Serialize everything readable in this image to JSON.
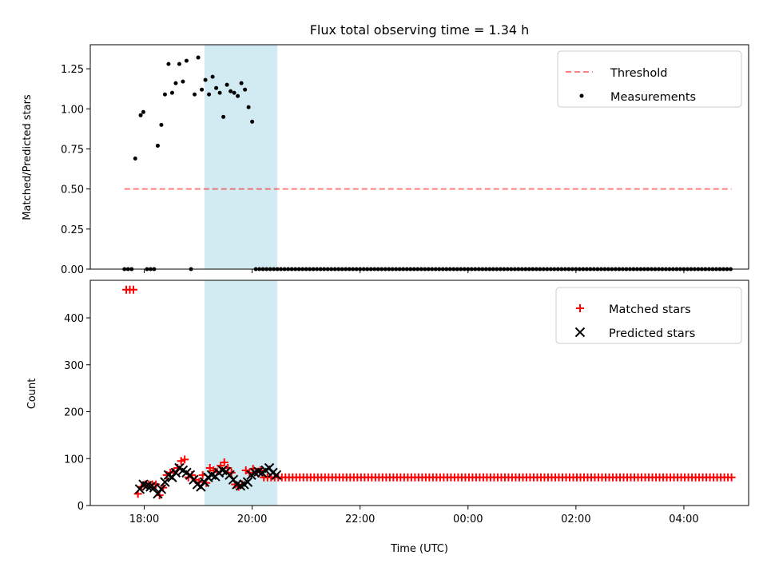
{
  "chart_data": [
    {
      "type": "scatter",
      "title": "Flux total observing time = 1.34 h",
      "xlabel": "",
      "ylabel": "Matched/Predicted stars",
      "x_range_hours": [
        17.0,
        5.2
      ],
      "ylim": [
        0,
        1.4
      ],
      "x_ticks": [
        18,
        20,
        22,
        0,
        2,
        4
      ],
      "y_ticks": [
        0.0,
        0.25,
        0.5,
        0.75,
        1.0,
        1.25
      ],
      "y_tick_labels": [
        "0.00",
        "0.25",
        "0.50",
        "0.75",
        "1.00",
        "1.25"
      ],
      "grid": false,
      "legend": "top-right",
      "shaded_interval": {
        "start": "19:07",
        "end": "20:28",
        "color": "#add8e6"
      },
      "series": [
        {
          "name": "Threshold",
          "kind": "line",
          "color": "#ff0000",
          "x": [
            "17:38",
            "04:53"
          ],
          "y": [
            0.5,
            0.5
          ]
        },
        {
          "name": "Measurements",
          "kind": "scatter",
          "color": "#000000",
          "x": [
            "17:38",
            "17:42",
            "17:46",
            "17:50",
            "17:56",
            "17:59",
            "18:03",
            "18:07",
            "18:11",
            "18:15",
            "18:19",
            "18:23",
            "18:27",
            "18:31",
            "18:35",
            "18:39",
            "18:43",
            "18:47",
            "18:52",
            "18:56",
            "19:00",
            "19:04",
            "19:08",
            "19:12",
            "19:16",
            "19:20",
            "19:24",
            "19:28",
            "19:32",
            "19:36",
            "19:40",
            "19:44",
            "19:48",
            "19:52",
            "19:56",
            "20:00",
            "20:04",
            "20:08",
            "20:12",
            "20:16",
            "20:20",
            "20:24",
            "20:28"
          ],
          "y": [
            0,
            0,
            0,
            0.69,
            0.96,
            0.98,
            0,
            0,
            0,
            0.77,
            0.9,
            1.09,
            1.28,
            1.1,
            1.16,
            1.28,
            1.17,
            1.3,
            0,
            1.09,
            1.32,
            1.12,
            1.18,
            1.09,
            1.2,
            1.13,
            1.1,
            0.95,
            1.15,
            1.11,
            1.1,
            1.08,
            1.16,
            1.12,
            1.01,
            0.92,
            0,
            0,
            0,
            0,
            0,
            0,
            0
          ],
          "zero_tail": {
            "start": "20:32",
            "end": "04:53",
            "step_minutes": 4,
            "value": 0
          }
        }
      ]
    },
    {
      "type": "scatter",
      "title": "",
      "xlabel": "Time (UTC)",
      "ylabel": "Count",
      "x_range_hours": [
        17.0,
        5.2
      ],
      "ylim": [
        0,
        480
      ],
      "x_ticks": [
        18,
        20,
        22,
        0,
        2,
        4
      ],
      "x_tick_labels": [
        "18:00",
        "20:00",
        "22:00",
        "00:00",
        "02:00",
        "04:00"
      ],
      "y_ticks": [
        0,
        100,
        200,
        300,
        400
      ],
      "y_tick_labels": [
        "0",
        "100",
        "200",
        "300",
        "400"
      ],
      "grid": false,
      "legend": "top-right",
      "shaded_interval": {
        "start": "19:07",
        "end": "20:28",
        "color": "#add8e6"
      },
      "series": [
        {
          "name": "Matched stars",
          "kind": "plus",
          "color": "#ff0000",
          "x": [
            "17:40",
            "17:44",
            "17:48",
            "17:53",
            "17:57",
            "18:01",
            "18:05",
            "18:09",
            "18:13",
            "18:17",
            "18:21",
            "18:25",
            "18:29",
            "18:33",
            "18:37",
            "18:41",
            "18:45",
            "18:49",
            "18:53",
            "18:57",
            "19:01",
            "19:05",
            "19:09",
            "19:13",
            "19:17",
            "19:21",
            "19:25",
            "19:29",
            "19:33",
            "19:37",
            "19:41",
            "19:45",
            "19:49",
            "19:53",
            "19:57",
            "20:01",
            "20:05",
            "20:09",
            "20:13",
            "20:17",
            "20:21",
            "20:25",
            "20:29"
          ],
          "y": [
            460,
            460,
            460,
            25,
            40,
            45,
            45,
            45,
            45,
            22,
            38,
            65,
            70,
            72,
            80,
            95,
            98,
            60,
            65,
            55,
            50,
            65,
            48,
            80,
            75,
            72,
            85,
            92,
            80,
            70,
            45,
            40,
            45,
            75,
            70,
            78,
            72,
            75,
            60,
            60,
            60,
            60,
            60
          ],
          "tail": {
            "start": "20:33",
            "end": "04:53",
            "step_minutes": 4,
            "value": 60
          }
        },
        {
          "name": "Predicted stars",
          "kind": "x",
          "color": "#000000",
          "x": [
            "17:55",
            "17:59",
            "18:03",
            "18:07",
            "18:11",
            "18:15",
            "18:19",
            "18:23",
            "18:27",
            "18:31",
            "18:35",
            "18:39",
            "18:43",
            "18:47",
            "18:51",
            "18:55",
            "18:59",
            "19:03",
            "19:07",
            "19:11",
            "19:15",
            "19:19",
            "19:23",
            "19:27",
            "19:31",
            "19:35",
            "19:39",
            "19:43",
            "19:47",
            "19:51",
            "19:55",
            "19:59",
            "20:03",
            "20:07",
            "20:11",
            "20:15",
            "20:19",
            "20:23",
            "20:27"
          ],
          "y": [
            35,
            45,
            42,
            40,
            38,
            25,
            35,
            50,
            65,
            60,
            70,
            80,
            75,
            70,
            65,
            55,
            45,
            40,
            50,
            60,
            65,
            62,
            70,
            75,
            72,
            65,
            55,
            45,
            42,
            45,
            50,
            65,
            70,
            72,
            70,
            75,
            80,
            70,
            65
          ]
        }
      ]
    }
  ]
}
